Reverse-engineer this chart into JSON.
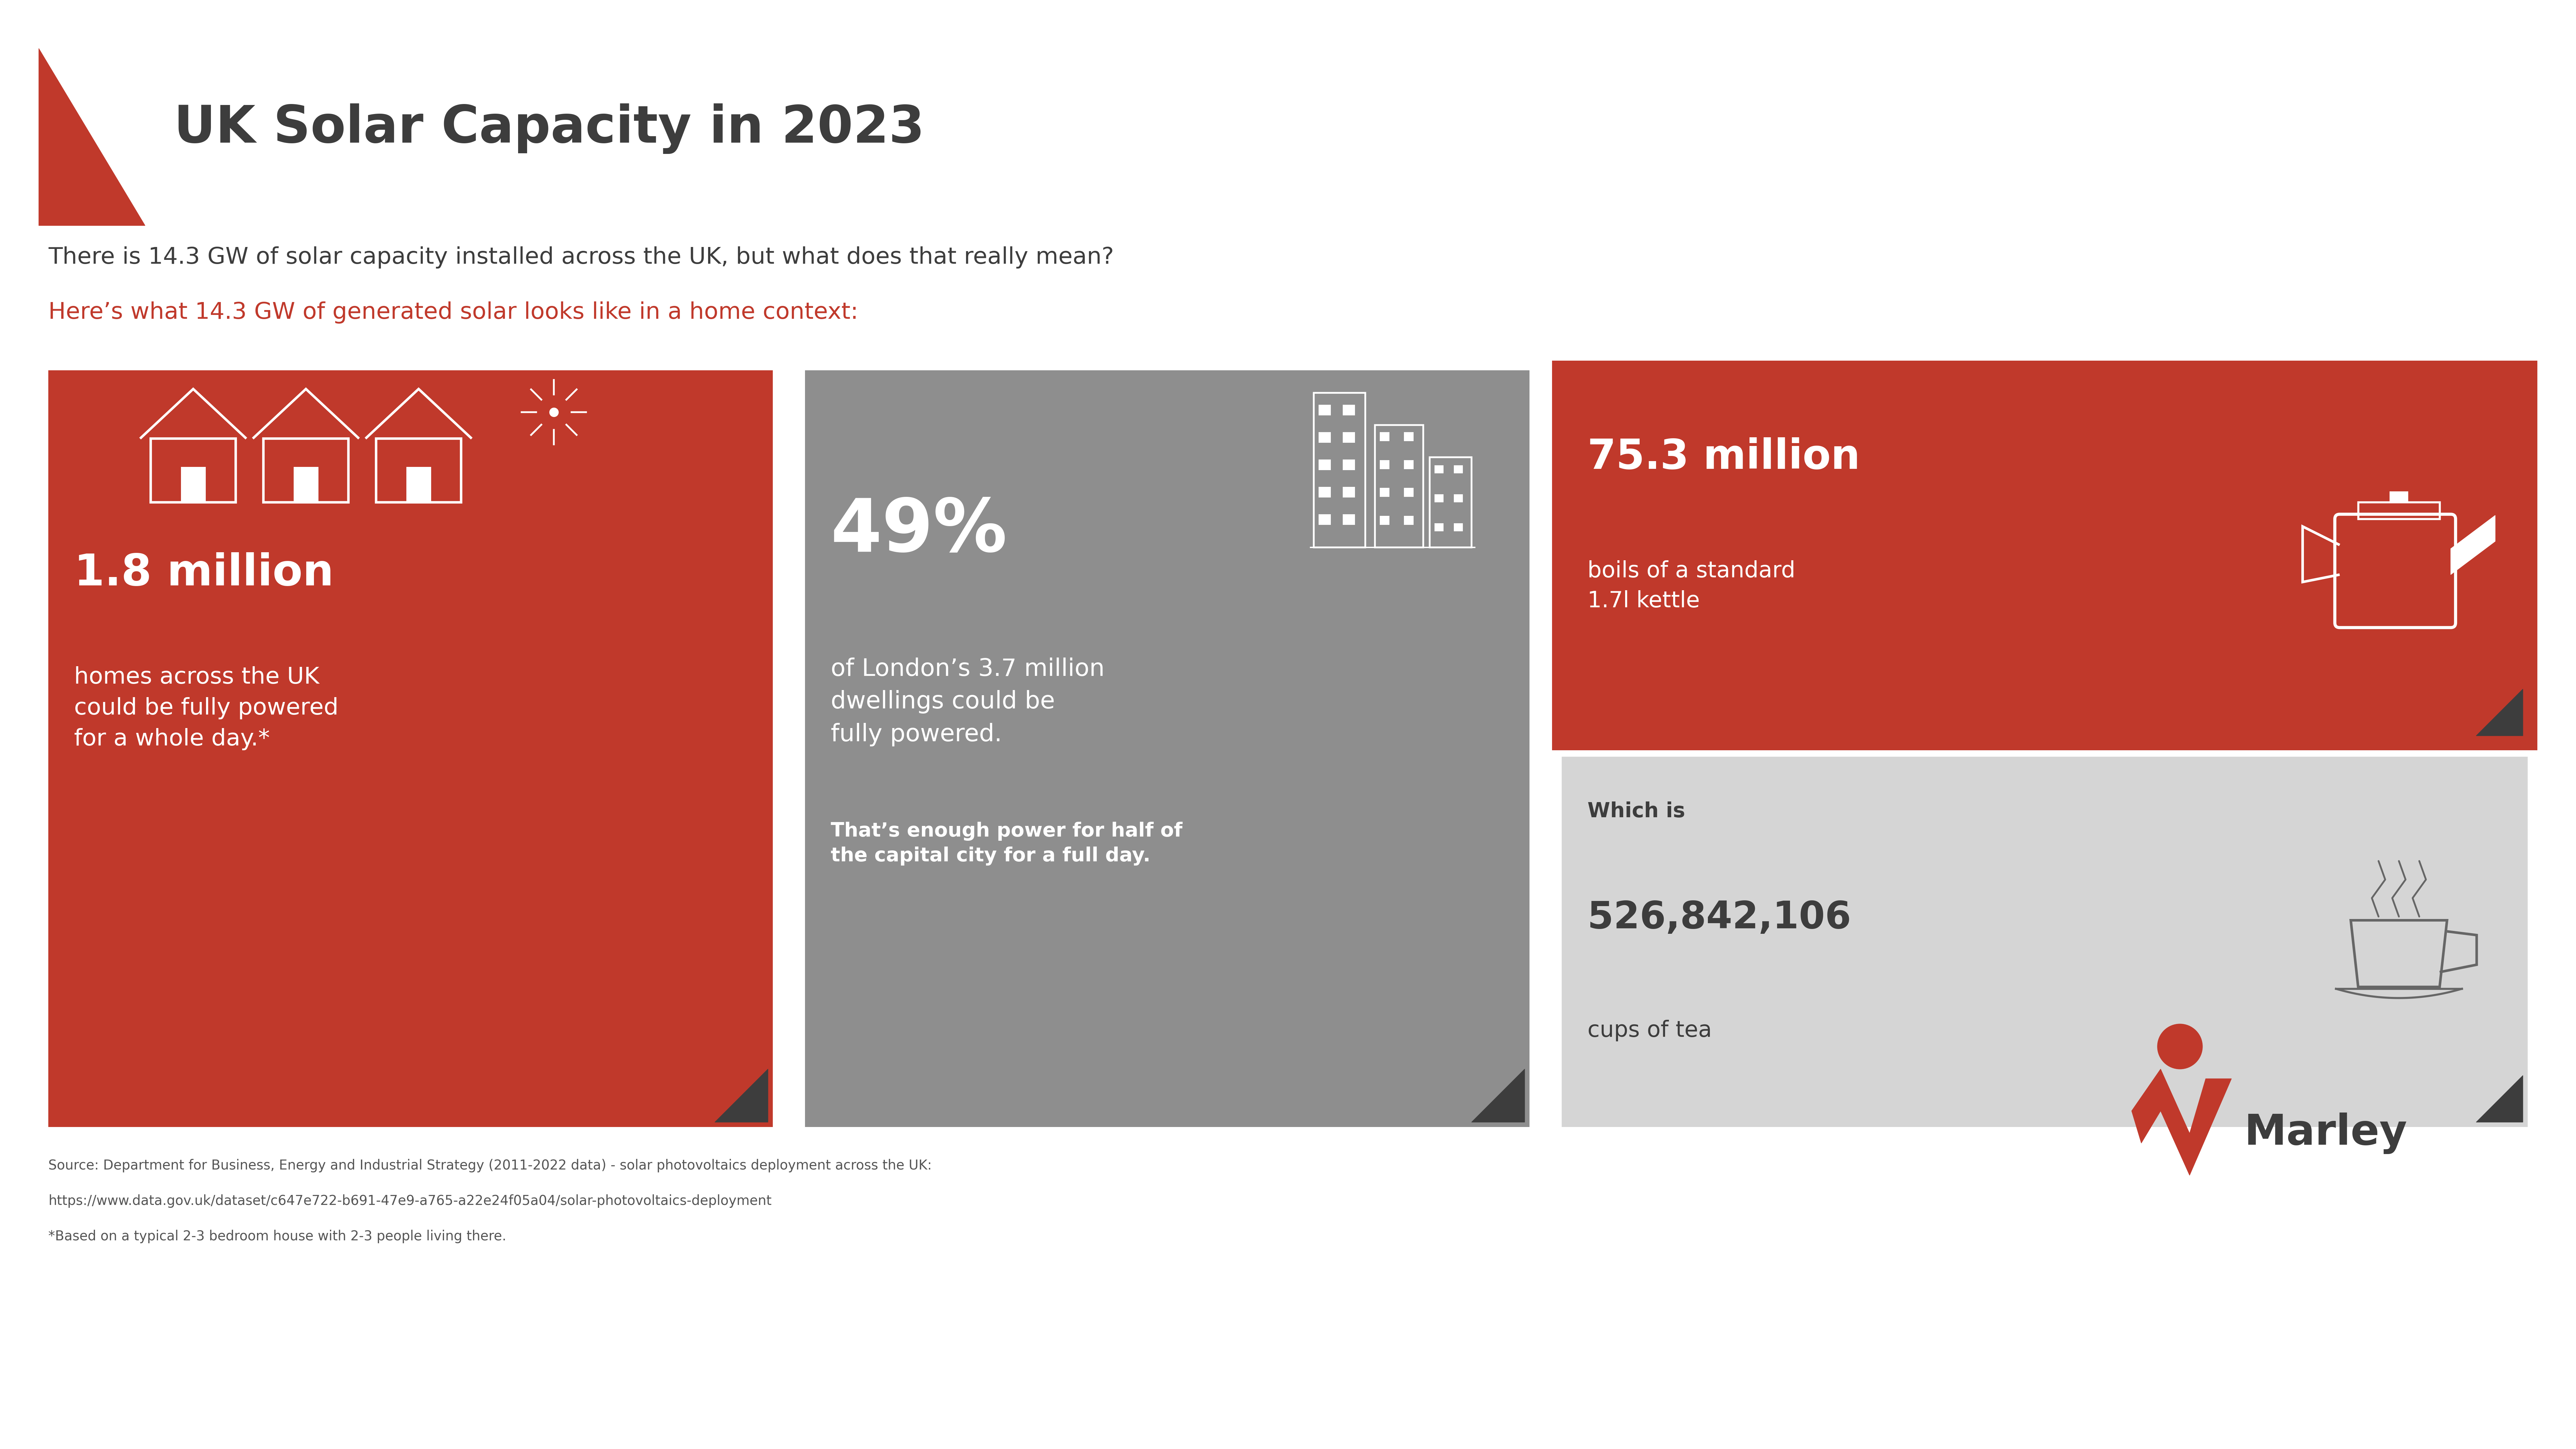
{
  "bg_color": "#ffffff",
  "red_color": "#c0392b",
  "gray_color": "#8e8e8e",
  "light_gray": "#d5d5d5",
  "dark_gray": "#3d3d3d",
  "title": "UK Solar Capacity in 2023",
  "subtitle1": "There is 14.3 GW of solar capacity installed across the UK, but what does that really mean?",
  "subtitle2": "Here’s what 14.3 GW of generated solar looks like in a home context:",
  "card1_big": "1.8 million",
  "card1_sub": "homes across the UK\ncould be fully powered\nfor a whole day.*",
  "card2_big": "49%",
  "card2_sub1": "of London’s 3.7 million\ndwellings could be\nfully powered.",
  "card2_sub2": "That’s enough power for half of\nthe capital city for a full day.",
  "card3_big": "75.3 million",
  "card3_sub1": "boils of a standard\n1.7l kettle",
  "card4_label": "Which is",
  "card4_big": "526,842,106",
  "card4_sub": "cups of tea",
  "source_line1": "Source: Department for Business, Energy and Industrial Strategy (2011-2022 data) - solar photovoltaics deployment across the UK:",
  "source_line2": "https://www.data.gov.uk/dataset/c647e722-b691-47e9-a765-a22e24f05a04/solar-photovoltaics-deployment",
  "source_line3": "*Based on a typical 2-3 bedroom house with 2-3 people living there.",
  "marley_text": "Marley"
}
